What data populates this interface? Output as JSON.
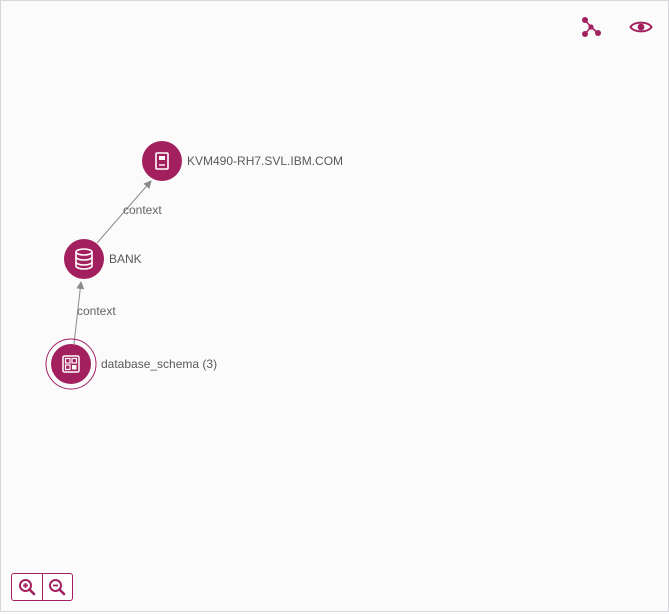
{
  "accent_color": "#a3205f",
  "toolbar": {
    "layout_icon": "graph-layout-icon",
    "view_icon": "eye-icon"
  },
  "graph": {
    "nodes": [
      {
        "id": "host",
        "label": "KVM490-RH7.SVL.IBM.COM",
        "icon": "server-icon"
      },
      {
        "id": "bank",
        "label": "BANK",
        "icon": "database-icon"
      },
      {
        "id": "schema",
        "label": "database_schema (3)",
        "icon": "schema-icon",
        "selected": true
      }
    ],
    "edges": [
      {
        "from": "bank",
        "to": "host",
        "label": "context"
      },
      {
        "from": "schema",
        "to": "bank",
        "label": "context"
      }
    ]
  },
  "zoom": {
    "in_icon": "zoom-in-icon",
    "out_icon": "zoom-out-icon"
  }
}
